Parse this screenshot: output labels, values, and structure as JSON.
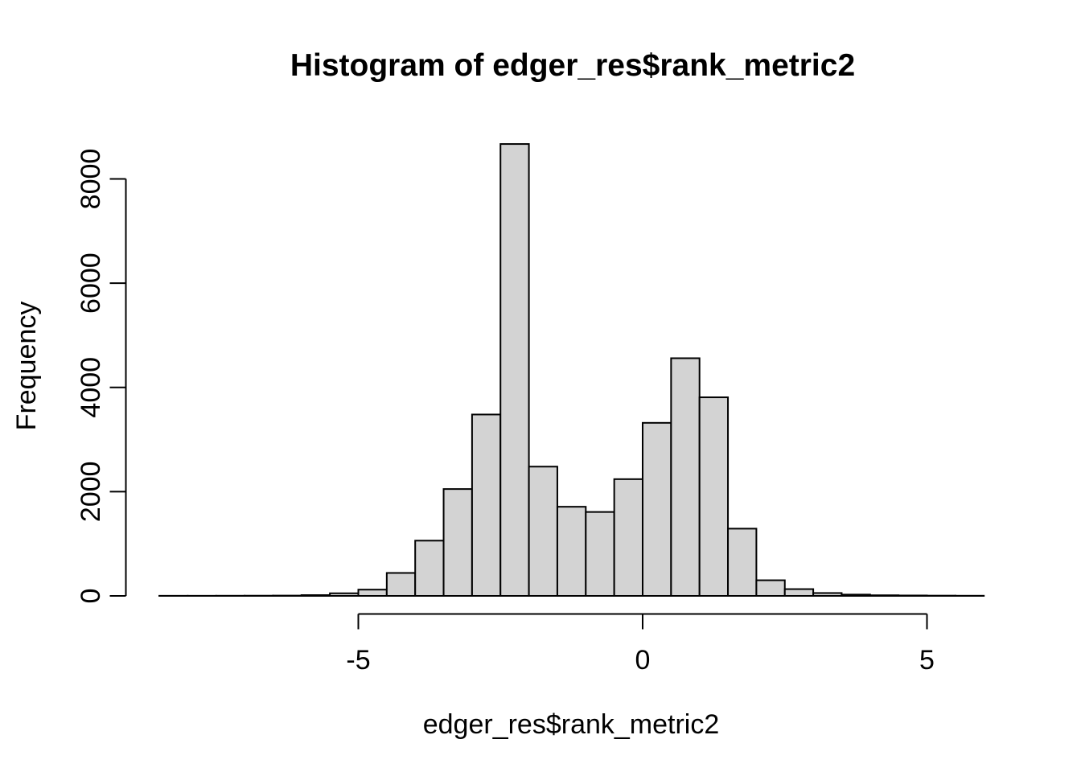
{
  "chart_data": {
    "type": "histogram",
    "title": "Histogram of edger_res$rank_metric2",
    "xlabel": "edger_res$rank_metric2",
    "ylabel": "Frequency",
    "bin_start": -8.5,
    "bin_width": 0.5,
    "counts": [
      2,
      2,
      3,
      4,
      6,
      15,
      50,
      120,
      440,
      1060,
      2050,
      3480,
      8670,
      2480,
      1710,
      1610,
      2240,
      3320,
      4560,
      3810,
      1290,
      300,
      130,
      55,
      25,
      12,
      8,
      5,
      3
    ],
    "x_ticks": [
      -5,
      0,
      5
    ],
    "x_tick_labels": [
      "-5",
      "0",
      "5"
    ],
    "y_ticks": [
      0,
      2000,
      4000,
      6000,
      8000
    ],
    "y_tick_labels": [
      "0",
      "2000",
      "4000",
      "6000",
      "8000"
    ],
    "xlim": [
      -8.5,
      6
    ],
    "ylim": [
      0,
      8000
    ],
    "grid": false,
    "legend": null,
    "bar_fill": "#d3d3d3",
    "bar_stroke": "#000000",
    "axis_color": "#000000",
    "background": "#ffffff"
  }
}
